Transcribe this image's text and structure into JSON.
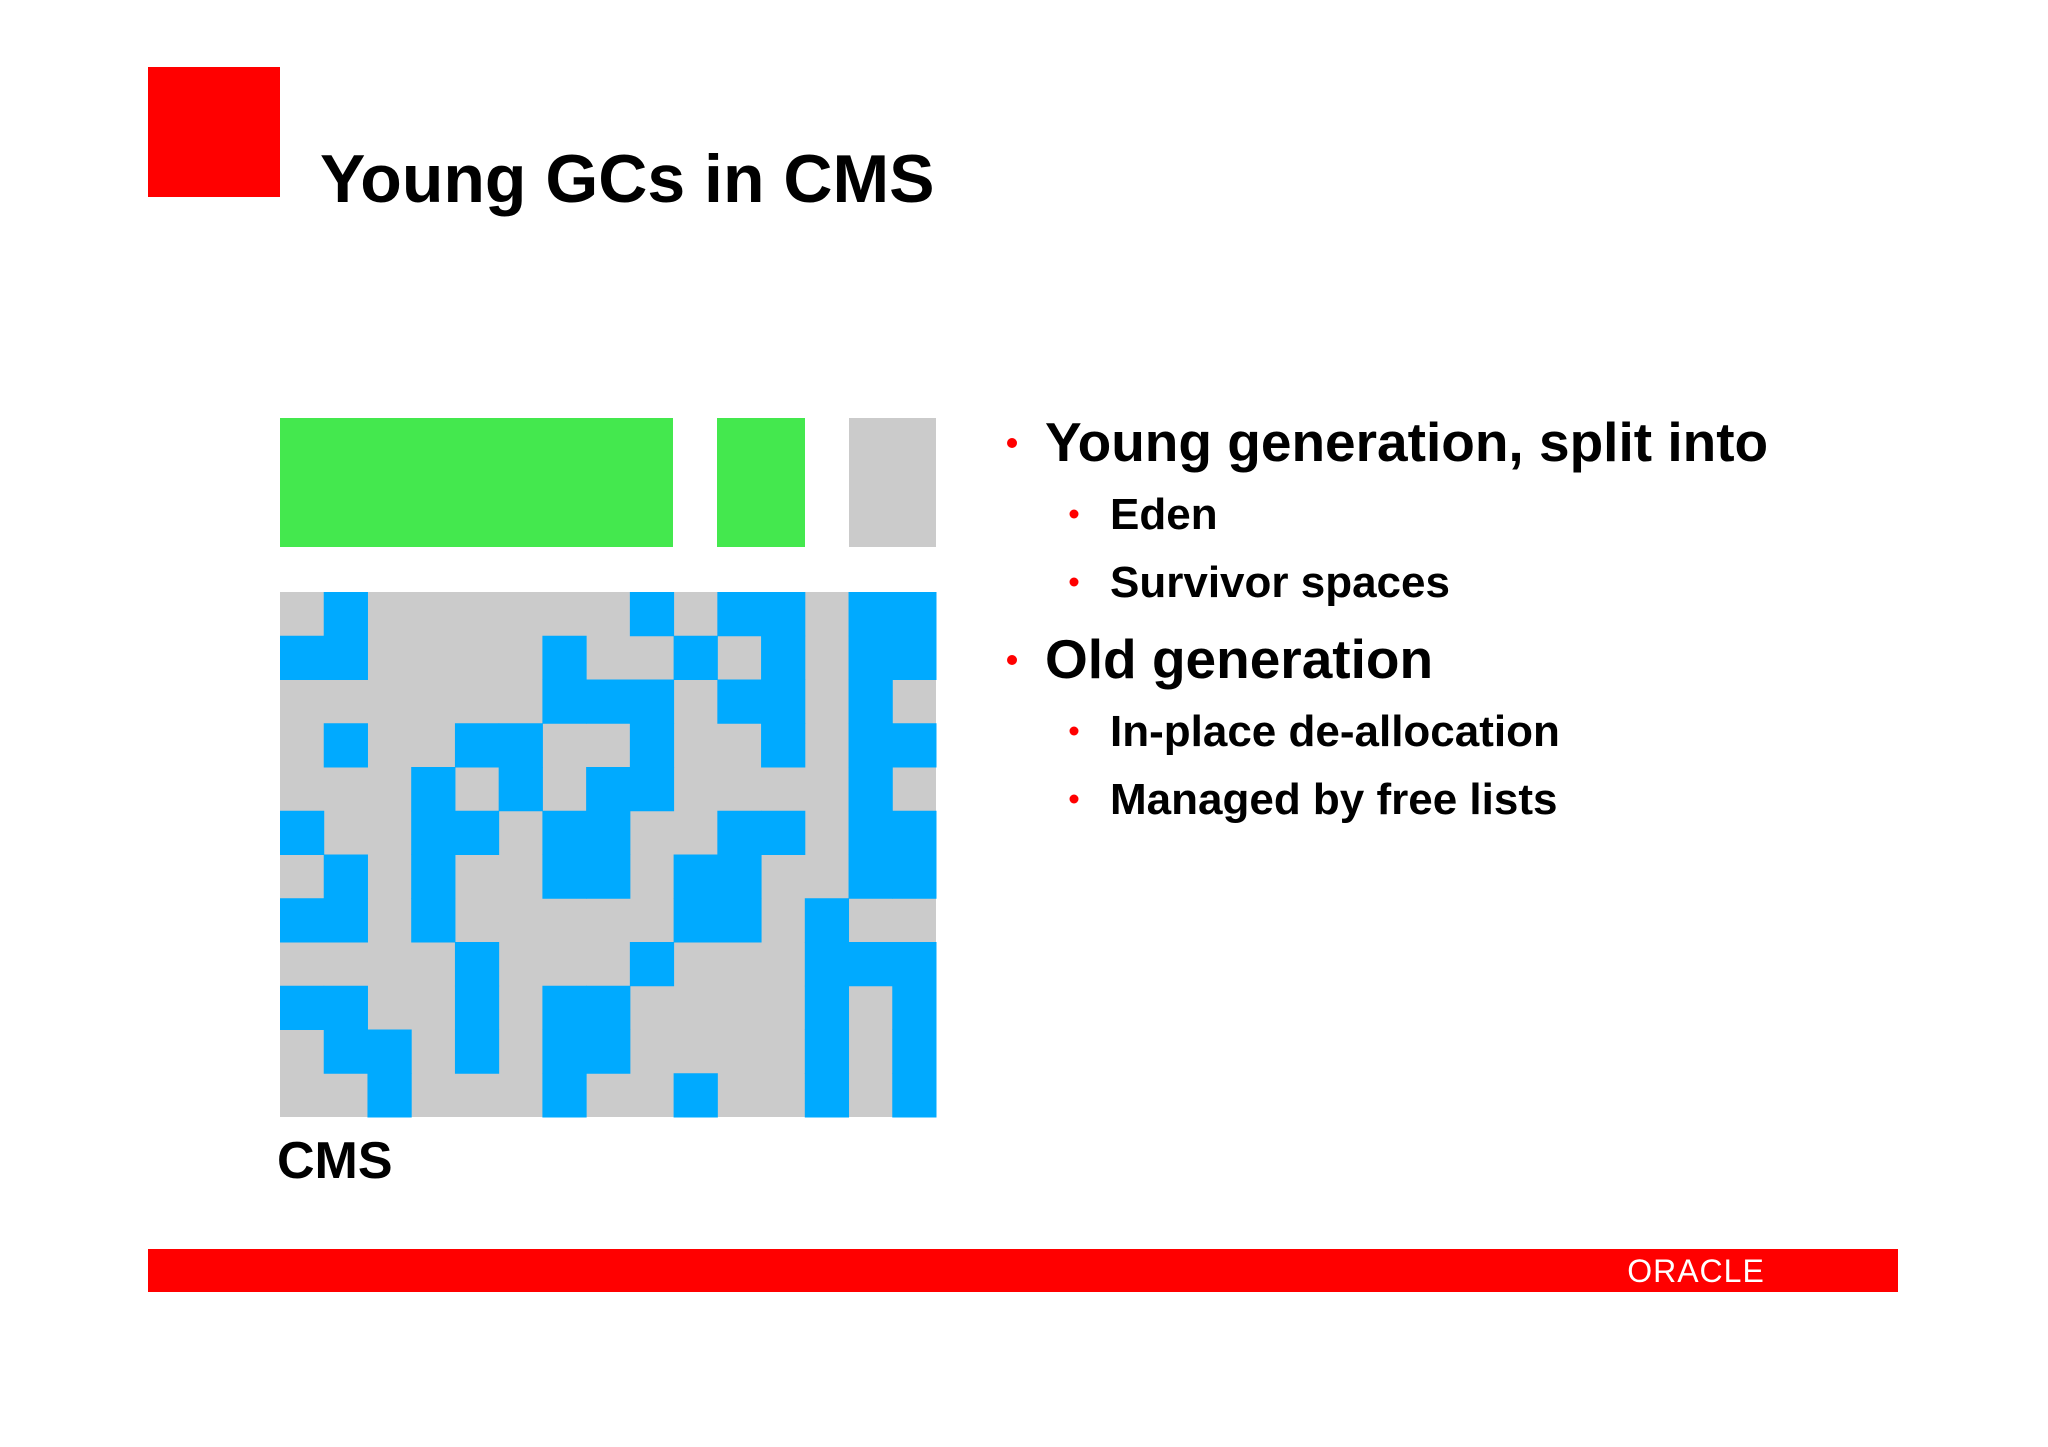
{
  "slide": {
    "title": "Young GCs in CMS",
    "diagram_label": "CMS",
    "bullets": [
      {
        "text": "Young generation, split into",
        "sub": [
          "Eden",
          "Survivor spaces"
        ]
      },
      {
        "text": "Old generation",
        "sub": [
          "In-place de-allocation",
          "Managed by free lists"
        ]
      }
    ],
    "footer_logo": "ORACLE"
  }
}
